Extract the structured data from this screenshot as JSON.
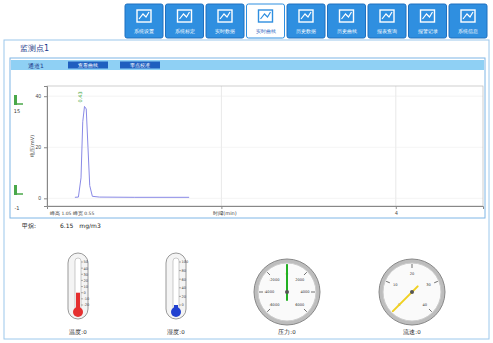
{
  "nav": {
    "items": [
      "系统设置",
      "系统标定",
      "实时数据",
      "实时曲线",
      "历史数据",
      "历史曲线",
      "报表查询",
      "报警记录",
      "系统信息"
    ],
    "active": "实时曲线"
  },
  "header": {
    "title": "监测点1"
  },
  "panel": {
    "channel": "通道1",
    "buttons": [
      "查看曲线",
      "零点校准"
    ]
  },
  "side_markers": {
    "upper": 15,
    "lower": -1
  },
  "chart_data": {
    "type": "line",
    "x_label": "时间(min)",
    "y_label": "电压(mV)",
    "x": [
      0.32,
      0.36,
      0.39,
      0.41,
      0.43,
      0.45,
      0.47,
      0.49,
      0.52,
      0.6,
      1.0,
      1.63
    ],
    "y": [
      0.4,
      0.5,
      8,
      30,
      36,
      35,
      20,
      5,
      0.8,
      0.5,
      0.4,
      0.4
    ],
    "xlim": [
      0,
      5
    ],
    "ylim": [
      -3,
      44
    ],
    "xticks": [
      2,
      4
    ],
    "yticks": [
      0,
      20,
      40
    ],
    "grid": true,
    "color": "#8a8ae6",
    "annotation": {
      "x": 0.43,
      "y": 36,
      "text": "0.43"
    },
    "peak_info": "峰高 1.05  峰宽 0.55"
  },
  "reading": {
    "label": "甲烷:",
    "value": 6.15,
    "unit": "mg/m3"
  },
  "gauges": [
    {
      "type": "thermometer",
      "label": "温度:",
      "value": 0,
      "color": "#e53030",
      "scale": [
        -20,
        -10,
        0,
        10,
        20,
        30,
        40,
        50
      ]
    },
    {
      "type": "thermometer",
      "label": "湿度:",
      "value": 0,
      "color": "#2040d0",
      "scale": [
        0,
        20,
        40,
        60,
        80,
        100
      ]
    },
    {
      "type": "dial",
      "label": "压力:",
      "value": 0,
      "color": "#22b022",
      "scale": [
        -6000,
        -4000,
        -2000,
        0,
        2000,
        4000,
        6000
      ]
    },
    {
      "type": "dial",
      "label": "流速:",
      "value": 0,
      "color": "#f0d020",
      "scale": [
        0,
        10,
        20,
        30,
        40
      ]
    }
  ]
}
